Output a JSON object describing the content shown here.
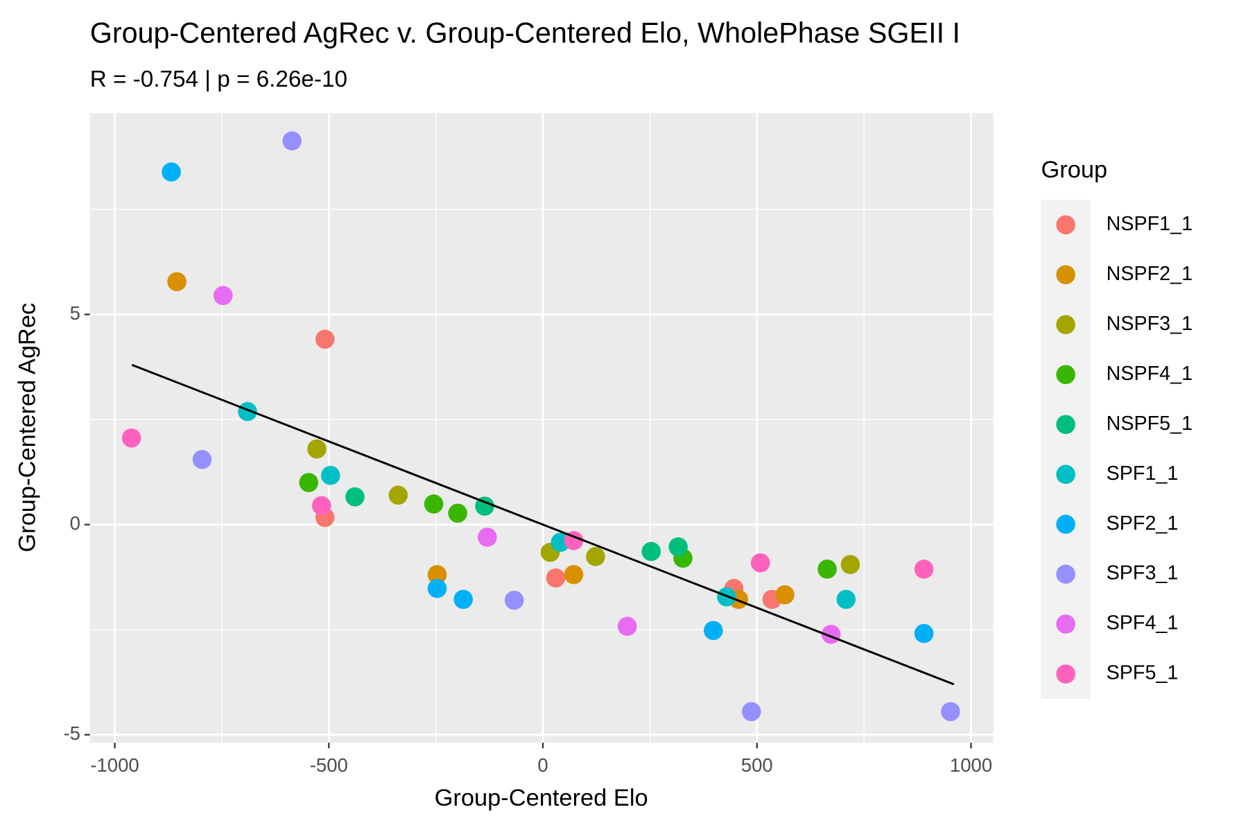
{
  "chart_data": {
    "type": "scatter",
    "title": "Group-Centered AgRec v. Group-Centered Elo, WholePhase SGEII I",
    "subtitle": "R = -0.754 | p = 6.26e-10",
    "x_label": "Group-Centered Elo",
    "y_label": "Group-Centered AgRec",
    "legend_title": "Group",
    "legend_position": "right",
    "grid": true,
    "xlim": [
      -1058,
      1052
    ],
    "ylim": [
      -5.19,
      9.79
    ],
    "xticks": [
      -1000,
      -500,
      0,
      500,
      1000
    ],
    "yticks": [
      -5,
      0,
      5
    ],
    "xminorticks": [
      -750,
      -250,
      250,
      750
    ],
    "yminorticks": [
      -2.5,
      2.5,
      7.5
    ],
    "trend_line": {
      "color": "#000000",
      "x": [
        -960,
        960
      ],
      "y": [
        3.8,
        -3.8
      ]
    },
    "series": [
      {
        "name": "NSPF1_1",
        "color": "#F8766D",
        "x": [
          -509,
          -509,
          30,
          446,
          535
        ],
        "values": [
          4.41,
          0.17,
          -1.27,
          -1.52,
          -1.78
        ]
      },
      {
        "name": "NSPF2_1",
        "color": "#D89000",
        "x": [
          -855,
          -247,
          72,
          457,
          565
        ],
        "values": [
          5.78,
          -1.19,
          -1.19,
          -1.78,
          -1.67
        ]
      },
      {
        "name": "NSPF3_1",
        "color": "#A3A500",
        "x": [
          -528,
          -338,
          17,
          123,
          718
        ],
        "values": [
          1.8,
          0.7,
          -0.66,
          -0.76,
          -0.95
        ]
      },
      {
        "name": "NSPF4_1",
        "color": "#39B600",
        "x": [
          -547,
          -255,
          -199,
          327,
          664
        ],
        "values": [
          1.0,
          0.49,
          0.27,
          -0.8,
          -1.06
        ]
      },
      {
        "name": "NSPF5_1",
        "color": "#00BF7D",
        "x": [
          -439,
          -136,
          253,
          316
        ],
        "values": [
          0.66,
          0.44,
          -0.64,
          -0.53
        ]
      },
      {
        "name": "SPF1_1",
        "color": "#00BFC4",
        "x": [
          -690,
          -496,
          41,
          429,
          708
        ],
        "values": [
          2.69,
          1.17,
          -0.42,
          -1.72,
          -1.78
        ]
      },
      {
        "name": "SPF2_1",
        "color": "#00B0F6",
        "x": [
          -868,
          -247,
          -186,
          398,
          890
        ],
        "values": [
          8.39,
          -1.52,
          -1.78,
          -2.52,
          -2.59
        ]
      },
      {
        "name": "SPF3_1",
        "color": "#9590FF",
        "x": [
          -586,
          -796,
          -67,
          487,
          952
        ],
        "values": [
          9.13,
          1.55,
          -1.8,
          -4.45,
          -4.45
        ]
      },
      {
        "name": "SPF4_1",
        "color": "#E76BF3",
        "x": [
          -747,
          -130,
          197,
          673
        ],
        "values": [
          5.45,
          -0.3,
          -2.42,
          -2.61
        ]
      },
      {
        "name": "SPF5_1",
        "color": "#FF62BC",
        "x": [
          -961,
          -517,
          72,
          508,
          890
        ],
        "values": [
          2.06,
          0.45,
          -0.38,
          -0.91,
          -1.06
        ]
      }
    ]
  }
}
